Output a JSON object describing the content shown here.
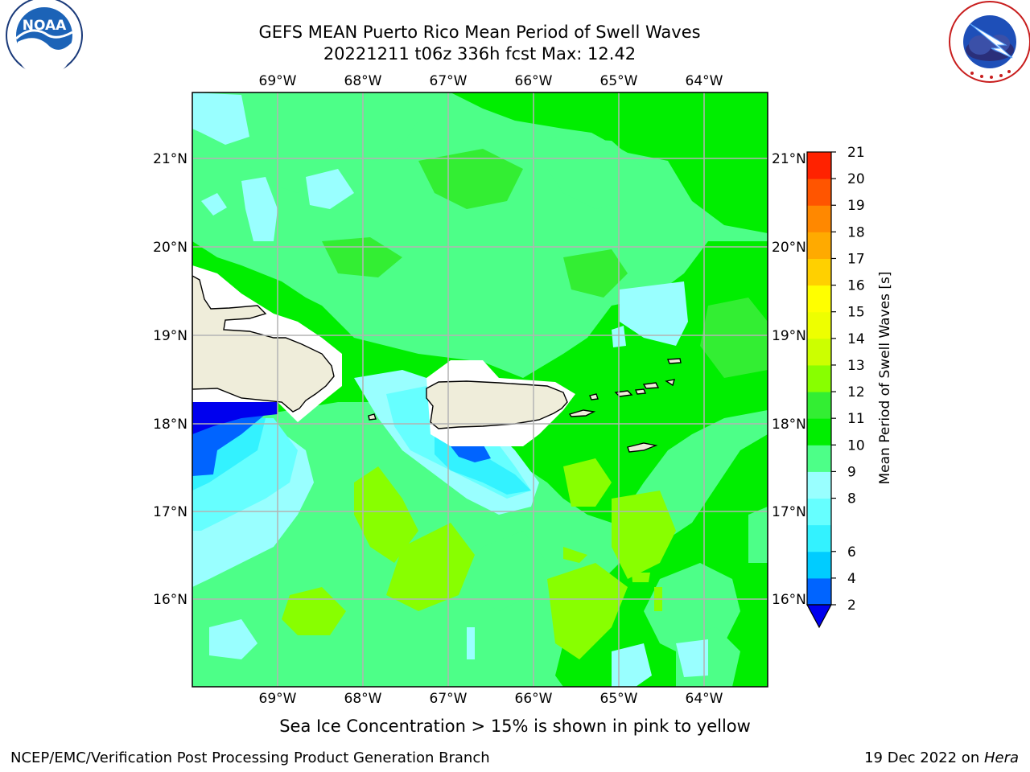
{
  "header": {
    "title_line1": "GEFS MEAN Puerto Rico Mean Period of Swell Waves",
    "title_line2": "20221211 t06z 336h fcst   Max: 12.42"
  },
  "logos": {
    "left": {
      "name": "NOAA",
      "text": "NOAA",
      "ring_text": "NATIONAL OCEANIC AND ATMOSPHERIC ADMINISTRATION · U.S. DEPARTMENT OF COMMERCE"
    },
    "right": {
      "name": "National Weather Service",
      "ring_text": "NATIONAL WEATHER SERVICE"
    }
  },
  "map": {
    "lon_ticks": [
      "69°W",
      "68°W",
      "67°W",
      "66°W",
      "65°W",
      "64°W"
    ],
    "lat_ticks": [
      "21°N",
      "20°N",
      "19°N",
      "18°N",
      "17°N",
      "16°N"
    ],
    "land_color": "#efedda",
    "grid_color": "#b4b4b4"
  },
  "colorbar": {
    "label": "Mean Period of Swell Waves [s]",
    "levels": [
      "2",
      "4",
      "6",
      "7",
      "8",
      "9",
      "10",
      "11",
      "12",
      "13",
      "14",
      "15",
      "16",
      "17",
      "18",
      "19",
      "20",
      "21"
    ],
    "colors": [
      "#0064ff",
      "#00ccff",
      "#33f2ff",
      "#66ffff",
      "#99ffff",
      "#4dff88",
      "#00ee00",
      "#33ee33",
      "#88ff00",
      "#ccff00",
      "#eeff00",
      "#ffff00",
      "#ffd000",
      "#ffaa00",
      "#ff8800",
      "#ff5500",
      "#ff2200",
      "#ff0000"
    ],
    "under_color": "#0000ee",
    "ticks": [
      "2",
      "4",
      "6",
      "8",
      "9",
      "10",
      "11",
      "12",
      "13",
      "14",
      "15",
      "16",
      "17",
      "18",
      "19",
      "20",
      "21"
    ]
  },
  "note": "Sea Ice Concentration > 15% is shown in pink to yellow",
  "footer": {
    "left": "NCEP/EMC/Verification Post Processing Product Generation Branch",
    "right_prefix": "19 Dec 2022 on ",
    "right_machine": "Hera"
  }
}
